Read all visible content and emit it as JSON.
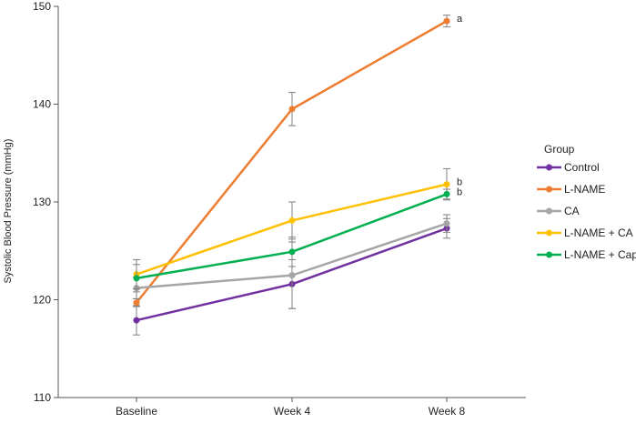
{
  "chart_data": {
    "type": "line",
    "title": "",
    "xlabel": "",
    "ylabel": "Systolic Blood Pressure (mmHg)",
    "categories": [
      "Baseline",
      "Week 4",
      "Week 8"
    ],
    "ylim": [
      110,
      150
    ],
    "yticks": [
      110,
      120,
      130,
      140,
      150
    ],
    "grid": false,
    "legend": {
      "title": "Group",
      "placement": "right"
    },
    "series": [
      {
        "name": "Control",
        "color": "#7030A0",
        "values": [
          117.9,
          121.6,
          127.3
        ],
        "errors": [
          1.5,
          2.5,
          1.0
        ]
      },
      {
        "name": "L-NAME",
        "color": "#ED7D31",
        "values": [
          119.7,
          139.5,
          148.5
        ],
        "errors": [
          0.4,
          1.7,
          0.6
        ],
        "annotations": [
          "",
          "",
          "a"
        ]
      },
      {
        "name": "CA",
        "color": "#A5A5A5",
        "values": [
          121.2,
          122.5,
          127.8
        ],
        "errors": [
          1.1,
          3.4,
          0.9
        ]
      },
      {
        "name": "L-NAME + CA",
        "color": "#FFC000",
        "values": [
          122.6,
          128.1,
          131.8
        ],
        "errors": [
          1.5,
          1.9,
          1.6
        ],
        "annotations": [
          "",
          "",
          "b"
        ]
      },
      {
        "name": "L-NAME + Cap",
        "color": "#00B050",
        "values": [
          122.2,
          124.9,
          130.8
        ],
        "errors": [
          1.4,
          1.5,
          0.5
        ],
        "annotations": [
          "",
          "",
          "b"
        ]
      }
    ]
  }
}
